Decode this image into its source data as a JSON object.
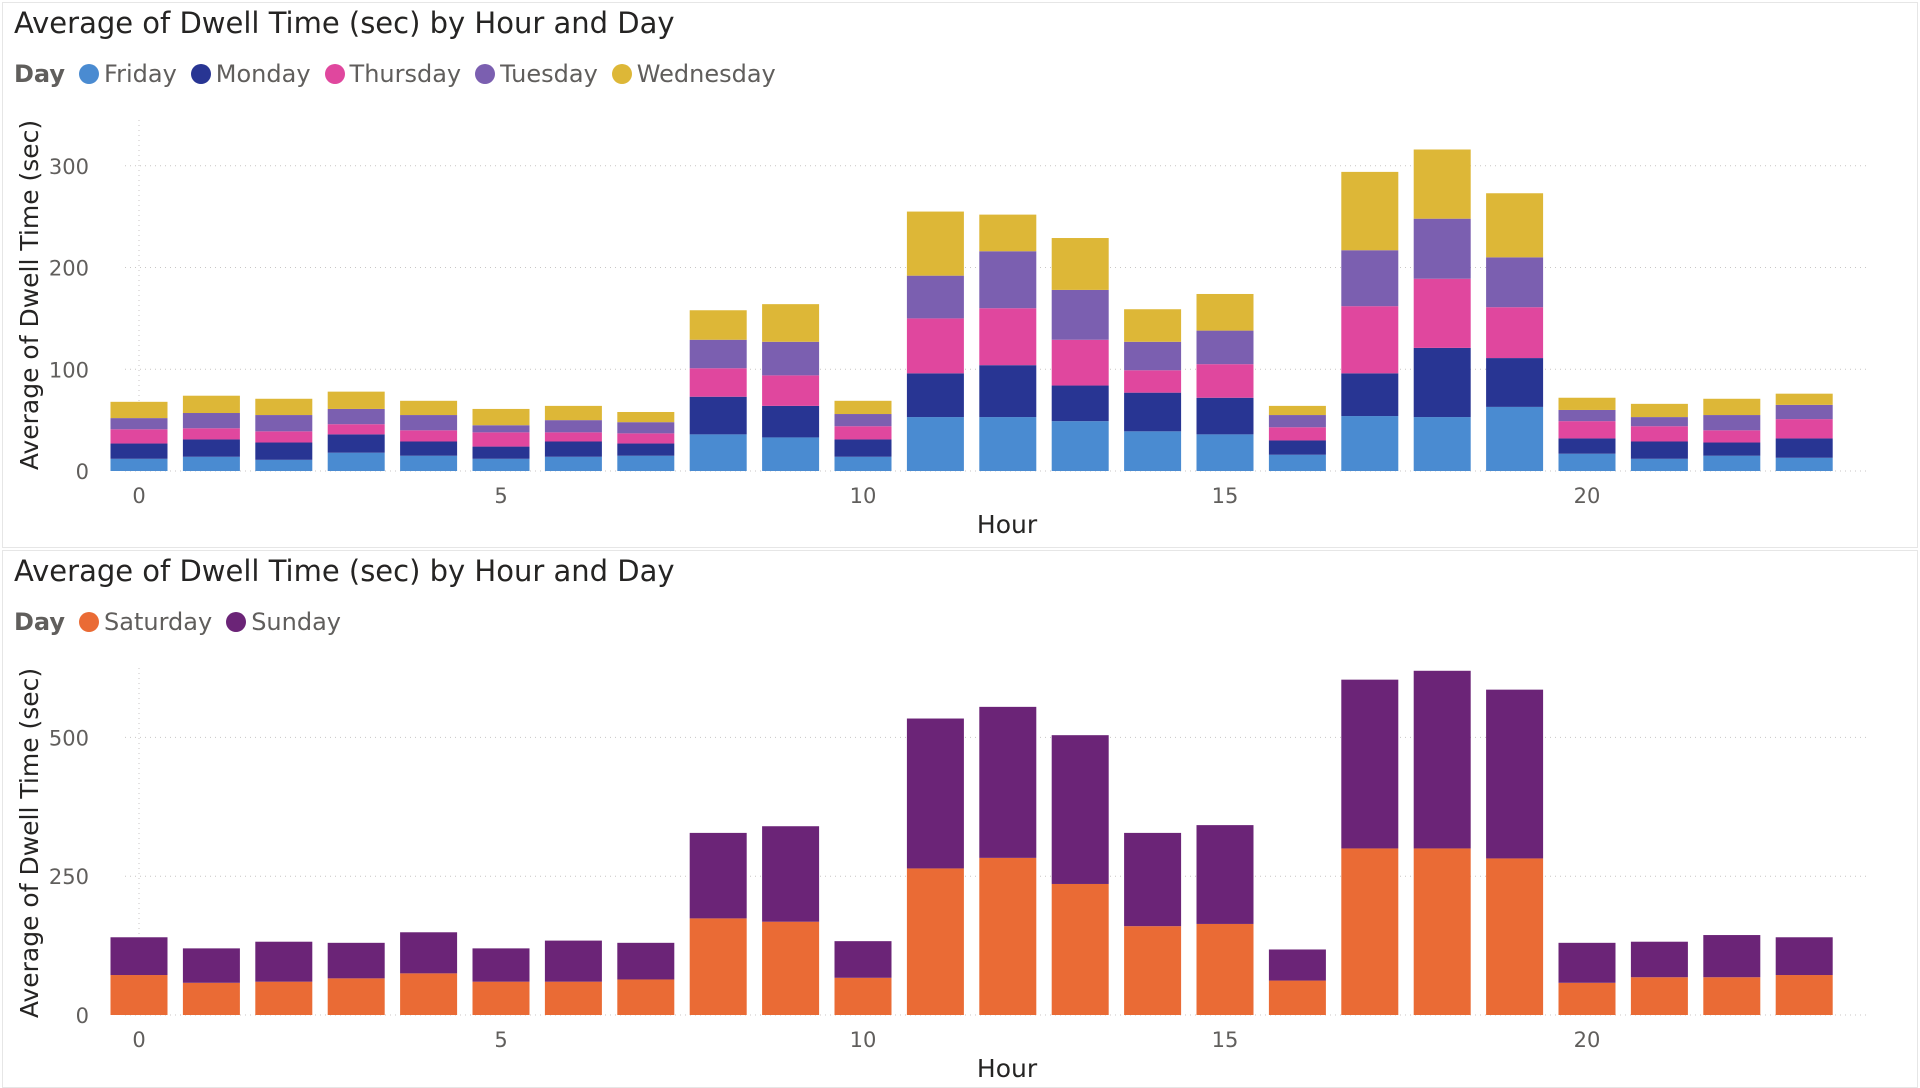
{
  "chart_data": [
    {
      "type": "bar",
      "stacked": true,
      "title": "Average of Dwell Time (sec) by Hour and Day",
      "legend_title": "Day",
      "legend_position": "top-left",
      "xlabel": "Hour",
      "ylabel": "Average of Dwell Time (sec)",
      "ylim": [
        0,
        345
      ],
      "yticks": [
        0,
        100,
        200,
        300
      ],
      "xticks": [
        0,
        5,
        10,
        15,
        20
      ],
      "grid": true,
      "x": [
        0,
        1,
        2,
        3,
        4,
        5,
        6,
        7,
        8,
        9,
        10,
        11,
        12,
        13,
        14,
        15,
        16,
        17,
        18,
        19,
        20,
        21,
        22,
        23
      ],
      "series": [
        {
          "name": "Friday",
          "color": "#4A8BD1",
          "values": [
            12,
            14,
            11,
            18,
            15,
            12,
            14,
            15,
            36,
            33,
            14,
            53,
            53,
            49,
            39,
            36,
            16,
            54,
            53,
            63,
            17,
            12,
            15,
            13
          ]
        },
        {
          "name": "Monday",
          "color": "#283593",
          "values": [
            15,
            17,
            17,
            18,
            14,
            12,
            15,
            12,
            37,
            31,
            17,
            43,
            51,
            35,
            38,
            36,
            14,
            42,
            68,
            48,
            15,
            17,
            13,
            19
          ]
        },
        {
          "name": "Thursday",
          "color": "#E0479E",
          "values": [
            14,
            11,
            11,
            10,
            11,
            14,
            9,
            10,
            28,
            30,
            13,
            54,
            56,
            45,
            22,
            33,
            13,
            66,
            68,
            50,
            17,
            15,
            12,
            19
          ]
        },
        {
          "name": "Tuesday",
          "color": "#7B5FB0",
          "values": [
            11,
            15,
            16,
            15,
            15,
            7,
            12,
            11,
            28,
            33,
            12,
            42,
            56,
            49,
            28,
            33,
            12,
            55,
            59,
            49,
            11,
            9,
            15,
            14
          ]
        },
        {
          "name": "Wednesday",
          "color": "#DDB737",
          "values": [
            16,
            17,
            16,
            17,
            14,
            16,
            14,
            10,
            29,
            37,
            13,
            63,
            36,
            51,
            32,
            36,
            9,
            77,
            68,
            63,
            12,
            13,
            16,
            11
          ]
        }
      ]
    },
    {
      "type": "bar",
      "stacked": true,
      "title": "Average of Dwell Time (sec) by Hour and Day",
      "legend_title": "Day",
      "legend_position": "top-left",
      "xlabel": "Hour",
      "ylabel": "Average of Dwell Time (sec)",
      "ylim": [
        0,
        625
      ],
      "yticks": [
        0,
        250,
        500
      ],
      "xticks": [
        0,
        5,
        10,
        15,
        20
      ],
      "grid": true,
      "x": [
        0,
        1,
        2,
        3,
        4,
        5,
        6,
        7,
        8,
        9,
        10,
        11,
        12,
        13,
        14,
        15,
        16,
        17,
        18,
        19,
        20,
        21,
        22,
        23
      ],
      "series": [
        {
          "name": "Saturday",
          "color": "#EA6B35",
          "values": [
            72,
            58,
            60,
            66,
            75,
            60,
            60,
            64,
            174,
            168,
            67,
            264,
            283,
            236,
            160,
            164,
            62,
            300,
            300,
            282,
            58,
            68,
            68,
            72
          ]
        },
        {
          "name": "Sunday",
          "color": "#6B2477",
          "values": [
            68,
            62,
            72,
            64,
            74,
            60,
            74,
            66,
            154,
            172,
            66,
            270,
            272,
            268,
            168,
            178,
            56,
            304,
            320,
            304,
            72,
            64,
            76,
            68
          ]
        }
      ]
    }
  ]
}
